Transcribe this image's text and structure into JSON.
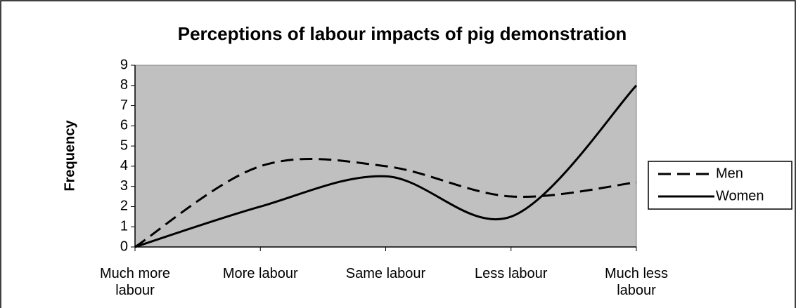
{
  "chart_data": {
    "type": "line",
    "title": "Perceptions of labour impacts of pig demonstration",
    "y_label": "Frequency",
    "categories": [
      "Much more labour",
      "More labour",
      "Same labour",
      "Less labour",
      "Much less labour"
    ],
    "series": [
      {
        "name": "Men",
        "color": "#000000",
        "line_style": "dashed",
        "values": [
          0,
          4,
          4,
          2.5,
          3.2
        ]
      },
      {
        "name": "Women",
        "color": "#000000",
        "line_style": "solid",
        "values": [
          0,
          2,
          3.5,
          1.5,
          8
        ]
      }
    ],
    "ylim": [
      0,
      9
    ],
    "yticks": [
      0,
      1,
      2,
      3,
      4,
      5,
      6,
      7,
      8,
      9
    ],
    "smooth": true,
    "plot_background": "#c0c0c0",
    "legend": "right"
  }
}
